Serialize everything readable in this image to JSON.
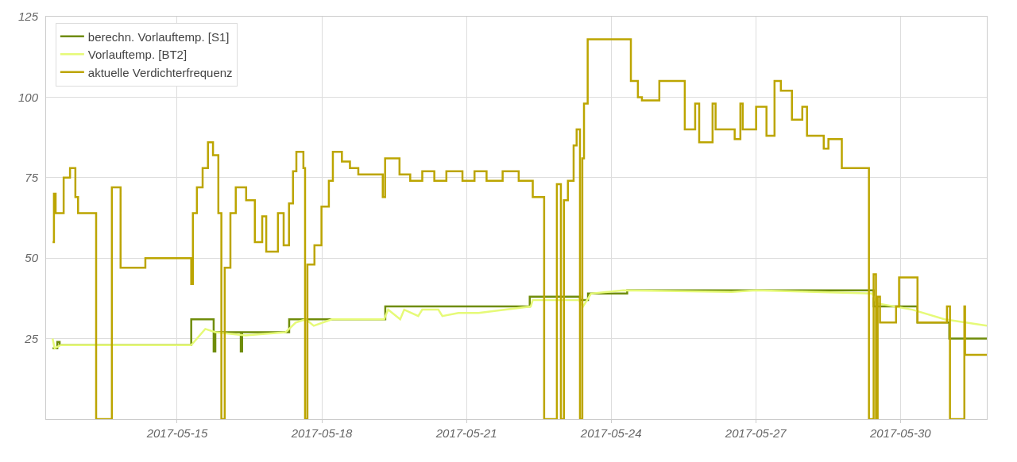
{
  "chart_data": {
    "type": "step",
    "xlim": [
      "2017-05-12T06:45",
      "2017-05-31T19:00"
    ],
    "xticks": [
      "2017-05-15",
      "2017-05-18",
      "2017-05-21",
      "2017-05-24",
      "2017-05-27",
      "2017-05-30"
    ],
    "ylim": [
      0,
      125
    ],
    "yticks": [
      25,
      50,
      75,
      100,
      125
    ],
    "grid": true,
    "legend": "top left",
    "line_style": "solid",
    "marker": "none",
    "series": [
      {
        "name": "berechn. Vorlauftemp. [S1]",
        "color": "#6f8c0a",
        "x": [
          "2017-05-12T10:00",
          "2017-05-12T12:20",
          "2017-05-12T13:30",
          "2017-05-15T07:00",
          "2017-05-15T18:10",
          "2017-05-15T19:00",
          "2017-05-16T07:40",
          "2017-05-16T08:20",
          "2017-05-17T07:45",
          "2017-05-19T07:35",
          "2017-05-22T07:30",
          "2017-05-23T08:30",
          "2017-05-23T12:30",
          "2017-05-24T08:00",
          "2017-05-29T10:40",
          "2017-05-30T08:30",
          "2017-05-31T00:20",
          "2017-05-31T19:00"
        ],
        "values": [
          22,
          24,
          23,
          31,
          21,
          27,
          21,
          27,
          31,
          35,
          38,
          37,
          39,
          40,
          35,
          30,
          25,
          25
        ]
      },
      {
        "name": "Vorlauftemp. [BT2]",
        "type": "line",
        "color": "#e6fa78",
        "x": [
          "2017-05-12T10:00",
          "2017-05-12T11:00",
          "2017-05-12T14:00",
          "2017-05-15T07:00",
          "2017-05-15T14:00",
          "2017-05-15T19:00",
          "2017-05-16T10:00",
          "2017-05-17T06:00",
          "2017-05-17T11:00",
          "2017-05-17T16:00",
          "2017-05-17T20:00",
          "2017-05-18T05:00",
          "2017-05-19T07:00",
          "2017-05-19T09:00",
          "2017-05-19T15:00",
          "2017-05-19T17:00",
          "2017-05-20T00:00",
          "2017-05-20T02:00",
          "2017-05-20T10:00",
          "2017-05-20T12:00",
          "2017-05-20T20:00",
          "2017-05-21T06:00",
          "2017-05-22T08:00",
          "2017-05-22T09:00",
          "2017-05-23T08:00",
          "2017-05-23T10:00",
          "2017-05-23T14:00",
          "2017-05-24T06:00",
          "2017-05-26T12:00",
          "2017-05-27T00:00",
          "2017-05-29T10:00",
          "2017-05-29T12:00",
          "2017-05-30T06:00",
          "2017-05-30T22:00",
          "2017-05-31T19:00"
        ],
        "values": [
          25,
          22,
          23,
          23,
          28,
          27,
          26,
          27,
          30,
          31,
          29,
          31,
          31,
          34,
          31,
          34,
          32,
          34,
          34,
          32,
          33,
          33,
          35,
          37,
          37,
          35,
          39,
          40,
          39.5,
          40,
          39,
          36,
          34,
          31,
          29
        ]
      },
      {
        "name": "aktuelle Verdichterfrequenz",
        "color": "#bca500",
        "x": [
          "2017-05-12T10:00",
          "2017-05-12T10:40",
          "2017-05-12T11:30",
          "2017-05-12T15:30",
          "2017-05-12T18:40",
          "2017-05-12T21:20",
          "2017-05-12T22:40",
          "2017-05-13T07:40",
          "2017-05-13T15:30",
          "2017-05-13T19:50",
          "2017-05-14T08:10",
          "2017-05-15T07:00",
          "2017-05-15T07:50",
          "2017-05-15T09:50",
          "2017-05-15T12:40",
          "2017-05-15T15:20",
          "2017-05-15T17:50",
          "2017-05-15T20:30",
          "2017-05-15T22:00",
          "2017-05-15T23:40",
          "2017-05-16T02:30",
          "2017-05-16T05:10",
          "2017-05-16T10:20",
          "2017-05-16T14:40",
          "2017-05-16T18:20",
          "2017-05-16T20:20",
          "2017-05-17T02:10",
          "2017-05-17T05:00",
          "2017-05-17T07:40",
          "2017-05-17T09:40",
          "2017-05-17T11:20",
          "2017-05-17T14:50",
          "2017-05-17T15:40",
          "2017-05-17T16:50",
          "2017-05-17T20:20",
          "2017-05-17T23:50",
          "2017-05-18T03:30",
          "2017-05-18T05:30",
          "2017-05-18T10:00",
          "2017-05-18T14:00",
          "2017-05-18T18:10",
          "2017-05-19T06:20",
          "2017-05-19T07:30",
          "2017-05-19T14:40",
          "2017-05-19T20:00",
          "2017-05-20T02:00",
          "2017-05-20T08:00",
          "2017-05-20T14:00",
          "2017-05-20T22:00",
          "2017-05-21T04:00",
          "2017-05-21T10:00",
          "2017-05-21T18:00",
          "2017-05-22T02:00",
          "2017-05-22T09:00",
          "2017-05-22T14:40",
          "2017-05-22T21:00",
          "2017-05-22T23:00",
          "2017-05-23T00:30",
          "2017-05-23T02:30",
          "2017-05-23T05:20",
          "2017-05-23T06:50",
          "2017-05-23T08:30",
          "2017-05-23T09:40",
          "2017-05-23T10:30",
          "2017-05-23T12:20",
          "2017-05-24T09:50",
          "2017-05-24T13:20",
          "2017-05-24T15:20",
          "2017-05-25T00:00",
          "2017-05-25T12:40",
          "2017-05-25T17:50",
          "2017-05-25T19:50",
          "2017-05-26T02:30",
          "2017-05-26T04:00",
          "2017-05-26T13:30",
          "2017-05-26T16:20",
          "2017-05-26T17:30",
          "2017-05-27T00:10",
          "2017-05-27T05:20",
          "2017-05-27T09:20",
          "2017-05-27T12:30",
          "2017-05-27T18:00",
          "2017-05-27T23:10",
          "2017-05-28T01:30",
          "2017-05-28T09:50",
          "2017-05-28T12:10",
          "2017-05-28T18:50",
          "2017-05-29T08:20",
          "2017-05-29T10:40",
          "2017-05-29T11:50",
          "2017-05-29T12:40",
          "2017-05-29T13:50",
          "2017-05-29T21:50",
          "2017-05-29T23:20",
          "2017-05-30T08:30",
          "2017-05-30T23:10",
          "2017-05-31T00:40",
          "2017-05-31T07:50",
          "2017-05-31T08:10",
          "2017-05-31T19:00"
        ],
        "values": [
          55,
          70,
          64,
          75,
          78,
          69,
          64,
          0,
          72,
          47,
          50,
          42,
          64,
          72,
          78,
          86,
          82,
          64,
          0,
          47,
          64,
          72,
          68,
          55,
          63,
          52,
          64,
          54,
          67,
          77,
          83,
          78,
          0,
          48,
          54,
          66,
          74,
          83,
          80,
          78,
          76,
          69,
          81,
          76,
          74,
          77,
          74,
          77,
          74,
          77,
          74,
          77,
          74,
          69,
          0,
          73,
          0,
          68,
          74,
          85,
          90,
          0,
          81,
          98,
          118,
          105,
          100,
          99,
          105,
          90,
          98,
          86,
          98,
          90,
          87,
          98,
          90,
          97,
          88,
          105,
          102,
          93,
          97,
          88,
          84,
          87,
          78,
          0,
          45,
          0,
          38,
          30,
          35,
          44,
          30,
          35,
          0,
          35,
          20,
          20
        ]
      }
    ]
  }
}
